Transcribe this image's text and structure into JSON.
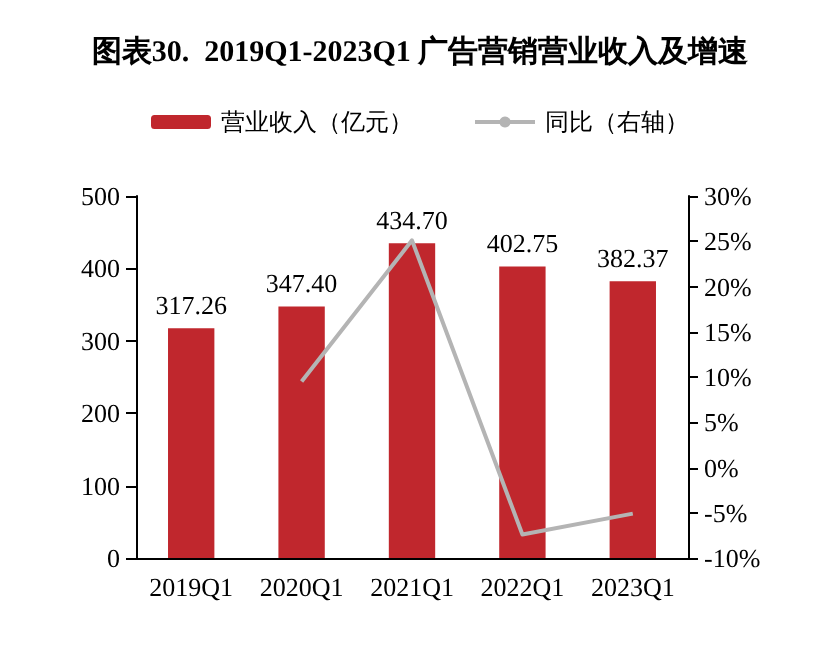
{
  "chart_data": {
    "type": "bar",
    "title": "图表30.  2019Q1-2023Q1 广告营销营业收入及增速",
    "categories": [
      "2019Q1",
      "2020Q1",
      "2021Q1",
      "2022Q1",
      "2023Q1"
    ],
    "series": [
      {
        "name": "营业收入（亿元）",
        "color": "#c0272d",
        "values": [
          317.26,
          347.4,
          434.7,
          402.75,
          382.37
        ]
      },
      {
        "name": "同比（右轴）",
        "type": "line",
        "axis": "y2",
        "color": "#b4b4b4",
        "values": [
          null,
          9.5,
          25.1,
          -7.4,
          -5.1
        ]
      }
    ],
    "value_labels": [
      "317.26",
      "347.40",
      "434.70",
      "402.75",
      "382.37"
    ],
    "ylim": [
      0,
      500
    ],
    "yticks": [
      0,
      100,
      200,
      300,
      400,
      500
    ],
    "y2lim": [
      -10,
      30
    ],
    "y2ticks": [
      {
        "value": -10,
        "label": "-10%"
      },
      {
        "value": -5,
        "label": "-5%"
      },
      {
        "value": 0,
        "label": "0%"
      },
      {
        "value": 5,
        "label": "5%"
      },
      {
        "value": 10,
        "label": "10%"
      },
      {
        "value": 15,
        "label": "15%"
      },
      {
        "value": 20,
        "label": "20%"
      },
      {
        "value": 25,
        "label": "25%"
      },
      {
        "value": 30,
        "label": "30%"
      }
    ],
    "grid": false,
    "legend": "top",
    "marker": "none"
  }
}
